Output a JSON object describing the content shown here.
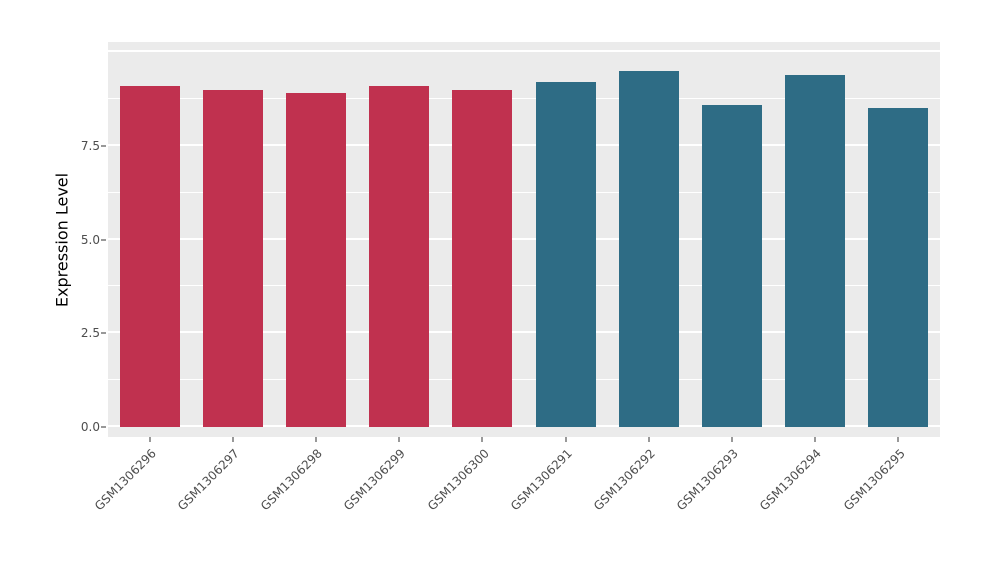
{
  "chart_data": {
    "type": "bar",
    "title": "",
    "xlabel": "",
    "ylabel": "Expression Level",
    "categories": [
      "GSM1306296",
      "GSM1306297",
      "GSM1306298",
      "GSM1306299",
      "GSM1306300",
      "GSM1306291",
      "GSM1306292",
      "GSM1306293",
      "GSM1306294",
      "GSM1306295"
    ],
    "values": [
      9.1,
      9.0,
      8.9,
      9.1,
      9.0,
      9.2,
      9.5,
      8.6,
      9.4,
      8.5
    ],
    "bar_colors": [
      "#C0314F",
      "#C0314F",
      "#C0314F",
      "#C0314F",
      "#C0314F",
      "#2E6C85",
      "#2E6C85",
      "#2E6C85",
      "#2E6C85",
      "#2E6C85"
    ],
    "groups": [
      {
        "name": "group-red",
        "color": "#C0314F",
        "categories": [
          "GSM1306296",
          "GSM1306297",
          "GSM1306298",
          "GSM1306299",
          "GSM1306300"
        ]
      },
      {
        "name": "group-teal",
        "color": "#2E6C85",
        "categories": [
          "GSM1306291",
          "GSM1306292",
          "GSM1306293",
          "GSM1306294",
          "GSM1306295"
        ]
      }
    ],
    "y_ticks": [
      {
        "value": 0,
        "label": "0.0"
      },
      {
        "value": 2.5,
        "label": "2.5"
      },
      {
        "value": 5,
        "label": "5.0"
      },
      {
        "value": 7.5,
        "label": "7.5"
      }
    ],
    "major_gridlines": [
      0,
      2.5,
      5,
      7.5,
      10
    ],
    "minor_gridlines": [
      1.25,
      3.75,
      6.25,
      8.75
    ],
    "value_range": [
      -0.27,
      10.27
    ],
    "bar_width_fraction": 0.72,
    "panel_background": "#EBEBEB",
    "gridline_color": "#FFFFFF",
    "legend_position": "none",
    "grid": "on"
  }
}
